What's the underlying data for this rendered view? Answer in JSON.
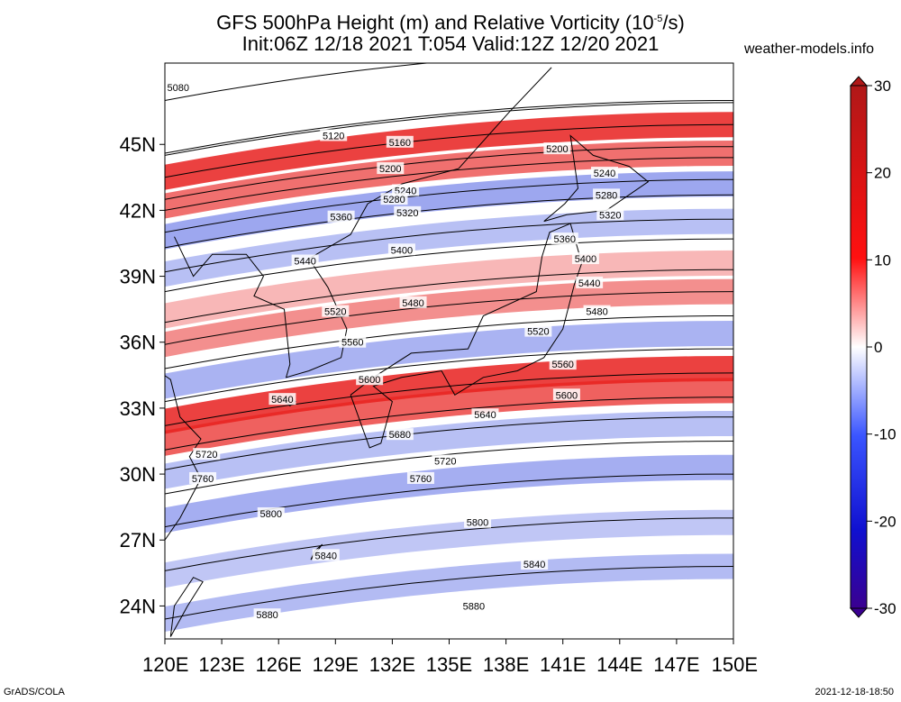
{
  "title_line1": "GFS 500hPa Height (m) and Relative Vorticity (10",
  "title_exp": "-5",
  "title_line1_end": "/s)",
  "title_line2": "Init:06Z 12/18 2021 T:054 Valid:12Z 12/20 2021",
  "site": "weather-models.info",
  "footer_left": "GrADS/COLA",
  "footer_right": "2021-12-18-18:50",
  "colors": {
    "positive": "#e8201e",
    "negative": "#3b4fe0",
    "contour": "#000000"
  },
  "lon_ticks": [
    "120E",
    "123E",
    "126E",
    "129E",
    "132E",
    "135E",
    "138E",
    "141E",
    "144E",
    "147E",
    "150E"
  ],
  "lat_ticks": [
    "24N",
    "27N",
    "30N",
    "33N",
    "36N",
    "39N",
    "42N",
    "45N"
  ],
  "colorbar": {
    "labels": [
      "30",
      "20",
      "10",
      "0",
      "-10",
      "-20",
      "-30"
    ]
  },
  "contours": [
    {
      "label": "5080",
      "lat": 47.6
    },
    {
      "label": "5120",
      "lat": 45.2
    },
    {
      "label": "5160",
      "lat": 45.1
    },
    {
      "label": "5200",
      "lat": 44.1
    },
    {
      "label": "5240",
      "lat": 43.1
    },
    {
      "label": "5280",
      "lat": 42.6
    },
    {
      "label": "5320",
      "lat": 41.6
    },
    {
      "label": "5360",
      "lat": 40.9
    },
    {
      "label": "5400",
      "lat": 39.8
    },
    {
      "label": "5440",
      "lat": 38.9
    },
    {
      "label": "5480",
      "lat": 37.5
    },
    {
      "label": "5520",
      "lat": 36.5
    },
    {
      "label": "5560",
      "lat": 35.4
    },
    {
      "label": "5600",
      "lat": 33.9
    },
    {
      "label": "5640",
      "lat": 32.8
    },
    {
      "label": "5680",
      "lat": 31.7
    },
    {
      "label": "5720",
      "lat": 30.8
    },
    {
      "label": "5760",
      "lat": 29.7
    },
    {
      "label": "5800",
      "lat": 28.2
    },
    {
      "label": "5840",
      "lat": 26.2
    },
    {
      "label": "5880",
      "lat": 24.0
    }
  ],
  "contour_labels": [
    {
      "label": "5080",
      "lon": 120.7,
      "lat": 47.6
    },
    {
      "label": "5120",
      "lon": 128.9,
      "lat": 45.4
    },
    {
      "label": "5160",
      "lon": 132.4,
      "lat": 45.1
    },
    {
      "label": "5200",
      "lon": 140.7,
      "lat": 44.8
    },
    {
      "label": "5200",
      "lon": 131.9,
      "lat": 43.9
    },
    {
      "label": "5240",
      "lon": 143.2,
      "lat": 43.7
    },
    {
      "label": "5240",
      "lon": 132.7,
      "lat": 42.9
    },
    {
      "label": "5280",
      "lon": 132.1,
      "lat": 42.5
    },
    {
      "label": "5280",
      "lon": 143.3,
      "lat": 42.7
    },
    {
      "label": "5320",
      "lon": 132.8,
      "lat": 41.9
    },
    {
      "label": "5320",
      "lon": 143.5,
      "lat": 41.8
    },
    {
      "label": "5360",
      "lon": 129.3,
      "lat": 41.7
    },
    {
      "label": "5360",
      "lon": 141.1,
      "lat": 40.7
    },
    {
      "label": "5400",
      "lon": 132.5,
      "lat": 40.2
    },
    {
      "label": "5400",
      "lon": 142.2,
      "lat": 39.8
    },
    {
      "label": "5440",
      "lon": 127.4,
      "lat": 39.7
    },
    {
      "label": "5440",
      "lon": 142.4,
      "lat": 38.7
    },
    {
      "label": "5480",
      "lon": 133.1,
      "lat": 37.8
    },
    {
      "label": "5480",
      "lon": 142.8,
      "lat": 37.4
    },
    {
      "label": "5520",
      "lon": 129.0,
      "lat": 37.4
    },
    {
      "label": "5520",
      "lon": 139.7,
      "lat": 36.5
    },
    {
      "label": "5560",
      "lon": 129.9,
      "lat": 36.0
    },
    {
      "label": "5560",
      "lon": 141.0,
      "lat": 35.0
    },
    {
      "label": "5600",
      "lon": 130.8,
      "lat": 34.3
    },
    {
      "label": "5600",
      "lon": 141.2,
      "lat": 33.6
    },
    {
      "label": "5640",
      "lon": 126.2,
      "lat": 33.4
    },
    {
      "label": "5640",
      "lon": 136.9,
      "lat": 32.7
    },
    {
      "label": "5680",
      "lon": 132.4,
      "lat": 31.8
    },
    {
      "label": "5720",
      "lon": 122.2,
      "lat": 30.9
    },
    {
      "label": "5720",
      "lon": 134.8,
      "lat": 30.6
    },
    {
      "label": "5760",
      "lon": 122.0,
      "lat": 29.8
    },
    {
      "label": "5760",
      "lon": 133.5,
      "lat": 29.8
    },
    {
      "label": "5800",
      "lon": 125.6,
      "lat": 28.2
    },
    {
      "label": "5800",
      "lon": 136.5,
      "lat": 27.8
    },
    {
      "label": "5840",
      "lon": 128.5,
      "lat": 26.3
    },
    {
      "label": "5840",
      "lon": 139.5,
      "lat": 25.9
    },
    {
      "label": "5880",
      "lon": 125.4,
      "lat": 23.6
    },
    {
      "label": "5880",
      "lon": 136.3,
      "lat": 24.0
    }
  ],
  "vorticity_bands": [
    {
      "lat": 44.1,
      "amp": 26
    },
    {
      "lat": 42.8,
      "amp": 18
    },
    {
      "lat": 41.4,
      "amp": -14
    },
    {
      "lat": 39.7,
      "amp": -10
    },
    {
      "lat": 37.8,
      "amp": 9
    },
    {
      "lat": 36.5,
      "amp": 14
    },
    {
      "lat": 34.6,
      "amp": -12
    },
    {
      "lat": 33.0,
      "amp": 24
    },
    {
      "lat": 32.0,
      "amp": 20
    },
    {
      "lat": 30.5,
      "amp": -10
    },
    {
      "lat": 28.5,
      "amp": -13
    },
    {
      "lat": 26.0,
      "amp": -9
    },
    {
      "lat": 24.0,
      "amp": -11
    }
  ]
}
